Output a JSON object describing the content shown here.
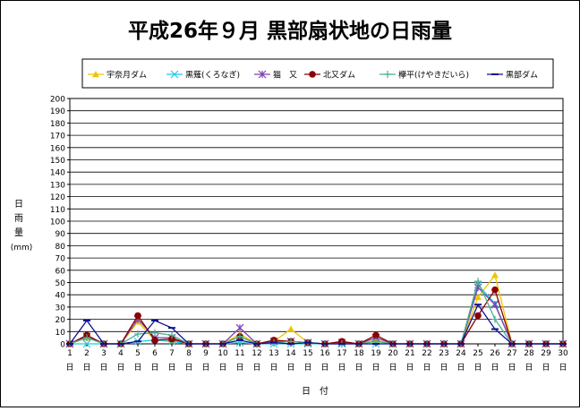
{
  "chart_data": {
    "type": "line",
    "title": "平成26年９月 黒部扇状地の日雨量",
    "xlabel": "日　付",
    "ylabel_chars": [
      "日",
      "雨",
      "量"
    ],
    "ylabel_unit": "(mm)",
    "ylim": [
      0,
      200
    ],
    "ytick_step": 10,
    "grid": true,
    "legend_position": "top",
    "x": [
      1,
      2,
      3,
      4,
      5,
      6,
      7,
      8,
      9,
      10,
      11,
      12,
      13,
      14,
      15,
      16,
      17,
      18,
      19,
      20,
      21,
      22,
      23,
      24,
      25,
      26,
      27,
      28,
      29,
      30
    ],
    "x_tick_suffix": "日",
    "series": [
      {
        "name": "宇奈月ダム",
        "color": "#f0c400",
        "marker": "triangle",
        "values": [
          0,
          5,
          0,
          0,
          18,
          3,
          3,
          0,
          0,
          0,
          8,
          0,
          2,
          12,
          1,
          0,
          1,
          0,
          3,
          0,
          0,
          0,
          0,
          0,
          38,
          56,
          0,
          0,
          0,
          0
        ]
      },
      {
        "name": "黒薙(くろなぎ)",
        "color": "#25c8e0",
        "marker": "x",
        "values": [
          0,
          0,
          0,
          0,
          2,
          3,
          2,
          0,
          0,
          0,
          1,
          0,
          0,
          0,
          0,
          0,
          0,
          0,
          0,
          0,
          0,
          0,
          0,
          0,
          48,
          33,
          0,
          0,
          0,
          0
        ]
      },
      {
        "name": "猫　又",
        "color": "#8040b0",
        "marker": "star",
        "values": [
          0,
          6,
          0,
          0,
          20,
          5,
          5,
          0,
          0,
          0,
          13,
          0,
          2,
          2,
          1,
          0,
          1,
          0,
          5,
          0,
          0,
          0,
          0,
          0,
          46,
          32,
          0,
          0,
          0,
          0
        ]
      },
      {
        "name": "北又ダム",
        "color": "#8b0000",
        "marker": "circle",
        "values": [
          0,
          7,
          0,
          0,
          23,
          3,
          4,
          0,
          0,
          0,
          6,
          0,
          3,
          2,
          1,
          0,
          2,
          0,
          7,
          0,
          0,
          0,
          0,
          0,
          23,
          44,
          0,
          0,
          0,
          0
        ]
      },
      {
        "name": "欅平(けやきだいら)",
        "color": "#4ab090",
        "marker": "plus",
        "values": [
          0,
          5,
          0,
          0,
          8,
          9,
          7,
          0,
          0,
          0,
          6,
          0,
          1,
          2,
          1,
          0,
          0,
          0,
          2,
          0,
          0,
          0,
          0,
          0,
          51,
          20,
          0,
          0,
          0,
          0
        ]
      },
      {
        "name": "黒部ダム",
        "color": "#101090",
        "marker": "dash",
        "values": [
          0,
          19,
          0,
          0,
          2,
          19,
          13,
          0,
          0,
          0,
          3,
          0,
          1,
          0,
          1,
          0,
          0,
          0,
          0,
          0,
          0,
          0,
          0,
          0,
          32,
          12,
          0,
          0,
          0,
          0
        ]
      }
    ]
  }
}
